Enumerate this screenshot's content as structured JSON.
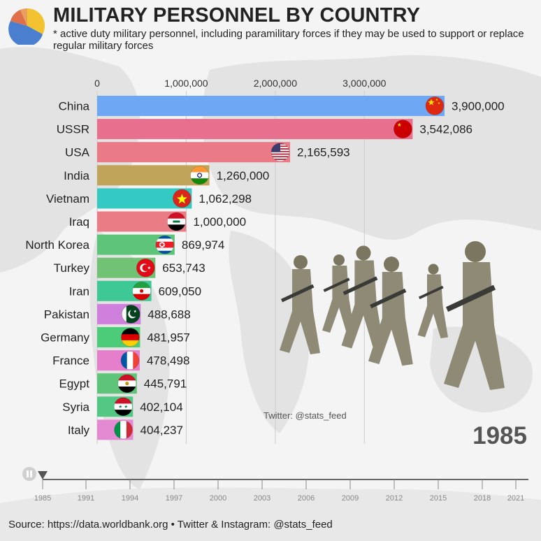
{
  "header": {
    "title": "MILITARY PERSONNEL BY COUNTRY",
    "subtitle": "* active duty military personnel, including paramilitary forces if they may be used to support or replace regular military forces"
  },
  "year_label": "1985",
  "watermark": "Twitter: @stats_feed",
  "source": "Source: https://data.worldbank.org • Twitter & Instagram: @stats_feed",
  "timeline": {
    "ticks": [
      "1985",
      "1991",
      "1994",
      "1997",
      "2000",
      "2003",
      "2006",
      "2009",
      "2012",
      "2015",
      "2018",
      "2021"
    ],
    "current": "1985"
  },
  "chart_data": {
    "type": "bar",
    "orientation": "horizontal",
    "title": "MILITARY PERSONNEL BY COUNTRY",
    "xlim": [
      0,
      3900000
    ],
    "xticks": [
      {
        "value": 0,
        "label": "0"
      },
      {
        "value": 1000000,
        "label": "1,000,000"
      },
      {
        "value": 2000000,
        "label": "2,000,000"
      },
      {
        "value": 3000000,
        "label": "3,000,000"
      }
    ],
    "categories": [
      "China",
      "USSR",
      "USA",
      "India",
      "Vietnam",
      "Iraq",
      "North Korea",
      "Turkey",
      "Iran",
      "Pakistan",
      "Germany",
      "France",
      "Egypt",
      "Syria",
      "Italy"
    ],
    "values": [
      3900000,
      3542086,
      2165593,
      1260000,
      1062298,
      1000000,
      869974,
      653743,
      609050,
      488688,
      481957,
      478498,
      445791,
      402104,
      404237
    ],
    "value_labels": [
      "3,900,000",
      "3,542,086",
      "2,165,593",
      "1,260,000",
      "1,062,298",
      "1,000,000",
      "869,974",
      "653,743",
      "609,050",
      "488,688",
      "481,957",
      "478,498",
      "445,791",
      "402,104",
      "404,237"
    ],
    "colors": [
      "#6ea8f5",
      "#e8708f",
      "#ea7a85",
      "#c0a45a",
      "#35c9c3",
      "#ea7c85",
      "#5ec47a",
      "#72c275",
      "#3ec895",
      "#cf7fdc",
      "#4ccb79",
      "#e57fcc",
      "#5ec47a",
      "#52c884",
      "#e48ad2"
    ],
    "flags": [
      "china-flag-icon",
      "ussr-flag-icon",
      "usa-flag-icon",
      "india-flag-icon",
      "vietnam-flag-icon",
      "iraq-flag-icon",
      "north-korea-flag-icon",
      "turkey-flag-icon",
      "iran-flag-icon",
      "pakistan-flag-icon",
      "germany-flag-icon",
      "france-flag-icon",
      "egypt-flag-icon",
      "syria-flag-icon",
      "italy-flag-icon"
    ],
    "grid": true
  }
}
